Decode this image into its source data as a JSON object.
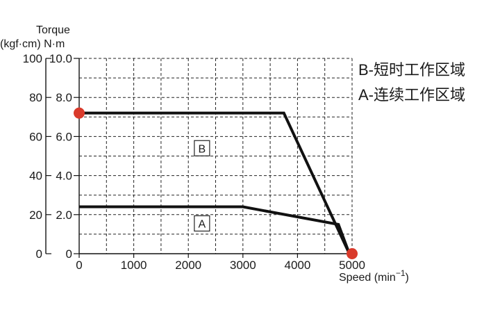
{
  "chart_data": {
    "type": "line",
    "ylabel_top": "Torque",
    "ylabel_units": "(kgf·cm) N·m",
    "xlabel": "Speed  (min",
    "xlabel_sup": "−1",
    "xlabel_close": ")",
    "xlim": [
      0,
      5000
    ],
    "ylim_nm": [
      0,
      10
    ],
    "ylim_kgfcm": [
      0,
      100
    ],
    "x_ticks": [
      "0",
      "1000",
      "2000",
      "3000",
      "4000",
      "5000"
    ],
    "y_ticks_nm": [
      "0",
      "2.0",
      "4.0",
      "6.0",
      "8.0",
      "10.0"
    ],
    "y_ticks_kgfcm": [
      "0",
      "20",
      "40",
      "60",
      "80",
      "100"
    ],
    "grid": true,
    "series": [
      {
        "name": "B",
        "x": [
          0,
          3750,
          4950
        ],
        "y": [
          7.2,
          7.2,
          0
        ]
      },
      {
        "name": "A",
        "x": [
          0,
          3000,
          4750,
          4950
        ],
        "y": [
          2.4,
          2.4,
          1.5,
          0
        ]
      }
    ],
    "markers": [
      {
        "x": 0,
        "y": 7.2,
        "color": "#d93a2b"
      },
      {
        "x": 5000,
        "y": 0,
        "color": "#d93a2b"
      }
    ],
    "region_labels": [
      {
        "label": "B",
        "x": 2250,
        "y": 5.4
      },
      {
        "label": "A",
        "x": 2250,
        "y": 1.55
      }
    ],
    "legend": [
      "B-短时工作区域",
      "A-连续工作区域"
    ],
    "legend_position": "right"
  }
}
